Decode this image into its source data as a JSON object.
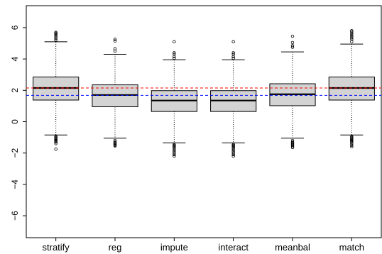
{
  "chart_data": {
    "type": "box",
    "title": "",
    "xlabel": "",
    "ylabel": "",
    "ylim": [
      -7.4,
      7.4
    ],
    "yticks": [
      -6,
      -4,
      -2,
      0,
      2,
      4,
      6
    ],
    "ytick_labels": [
      "−6",
      "−4",
      "−2",
      "0",
      "2",
      "4",
      "6"
    ],
    "grid": false,
    "categories": [
      "stratify",
      "reg",
      "impute",
      "interact",
      "meanbal",
      "match"
    ],
    "boxes": [
      {
        "name": "stratify",
        "whisker_low": -0.85,
        "q1": 1.38,
        "median": 2.15,
        "q3": 2.85,
        "whisker_high": 5.1,
        "outliers_high": [
          5.2,
          5.3,
          5.4,
          5.5,
          5.6,
          5.65,
          5.7
        ],
        "outliers_low": [
          -0.95,
          -1.0,
          -1.05,
          -1.1,
          -1.15,
          -1.2,
          -1.25,
          -1.3,
          -1.4,
          -1.75
        ]
      },
      {
        "name": "reg",
        "whisker_low": -1.05,
        "q1": 0.95,
        "median": 1.7,
        "q3": 2.35,
        "whisker_high": 4.3,
        "outliers_high": [
          4.5,
          4.65,
          5.15,
          5.25
        ],
        "outliers_low": [
          -1.2,
          -1.3,
          -1.35,
          -1.4,
          -1.45,
          -1.5,
          -1.55
        ]
      },
      {
        "name": "impute",
        "whisker_low": -1.35,
        "q1": 0.65,
        "median": 1.35,
        "q3": 1.98,
        "whisker_high": 3.95,
        "outliers_high": [
          4.05,
          4.15,
          4.3,
          4.4,
          5.1
        ],
        "outliers_low": [
          -1.45,
          -1.5,
          -1.55,
          -1.6,
          -1.7,
          -1.8,
          -1.9,
          -2.0,
          -2.1,
          -2.2
        ]
      },
      {
        "name": "interact",
        "whisker_low": -1.35,
        "q1": 0.65,
        "median": 1.35,
        "q3": 1.98,
        "whisker_high": 3.95,
        "outliers_high": [
          4.05,
          4.15,
          4.3,
          4.4,
          5.1
        ],
        "outliers_low": [
          -1.45,
          -1.5,
          -1.55,
          -1.6,
          -1.7,
          -1.8,
          -1.9,
          -2.0,
          -2.1,
          -2.2
        ]
      },
      {
        "name": "meanbal",
        "whisker_low": -1.05,
        "q1": 1.02,
        "median": 1.75,
        "q3": 2.42,
        "whisker_high": 4.45,
        "outliers_high": [
          4.75,
          4.85,
          5.05,
          5.45
        ],
        "outliers_low": [
          -1.2,
          -1.3,
          -1.35,
          -1.4,
          -1.45,
          -1.5,
          -1.6,
          -1.65
        ]
      },
      {
        "name": "match",
        "whisker_low": -0.85,
        "q1": 1.38,
        "median": 2.15,
        "q3": 2.85,
        "whisker_high": 4.95,
        "outliers_high": [
          5.1,
          5.25,
          5.35,
          5.45,
          5.55,
          5.65,
          5.75,
          5.8
        ],
        "outliers_low": [
          -0.95,
          -1.0,
          -1.05,
          -1.1,
          -1.15,
          -1.2,
          -1.25,
          -1.3,
          -1.4,
          -1.5,
          -1.6
        ]
      }
    ],
    "reference_lines": [
      {
        "value": 2.15,
        "color": "#ff0000",
        "style": "dashed"
      },
      {
        "value": 1.68,
        "color": "#0000ff",
        "style": "dashed"
      }
    ],
    "colors": {
      "box_fill": "#d3d3d3",
      "stroke": "#000000",
      "background": "#ffffff"
    }
  }
}
